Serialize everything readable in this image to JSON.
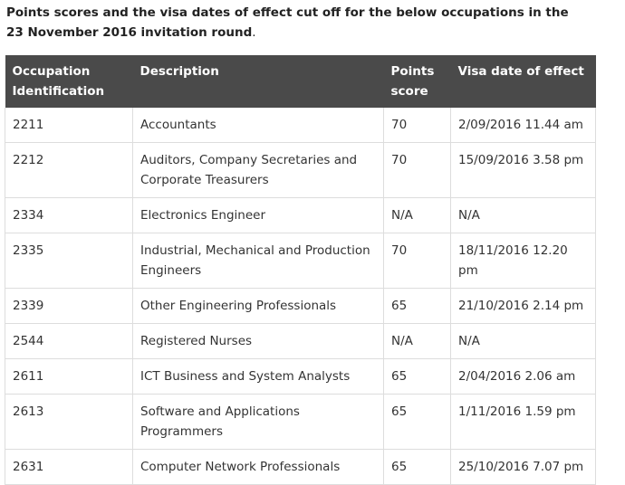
{
  "intro": {
    "text": "Points scores and the visa dates of effect cut off for the below occupations in the 23 November 2016 invitation round",
    "suffix": "."
  },
  "table": {
    "headers": {
      "occupation": "Occupation Identification",
      "description": "Description",
      "points": "Points score",
      "date": "Visa date of effect"
    },
    "rows": [
      {
        "code": "2211",
        "description": "Accountants",
        "points": "70",
        "date": "2/09/2016  11.44 am"
      },
      {
        "code": "2212",
        "description": "Auditors, Company Secretaries and Corporate Treasurers",
        "points": "70",
        "date": "15/09/2016  3.58 pm"
      },
      {
        "code": "2334",
        "description": "Electronics Engineer",
        "points": "N/A",
        "date": "N/A"
      },
      {
        "code": "2335",
        "description": "Industrial, Mechanical and Production Engineers",
        "points": "70",
        "date": "18/11/2016  12.20 pm"
      },
      {
        "code": "2339",
        "description": "Other Engineering Professionals",
        "points": "65",
        "date": "21/10/2016  2.14 pm"
      },
      {
        "code": "2544",
        "description": "Registered Nurses",
        "points": "N/A",
        "date": "N/A"
      },
      {
        "code": "2611",
        "description": "ICT Business and System Analysts",
        "points": "65",
        "date": "2/04/2016  2.06 am"
      },
      {
        "code": "2613",
        "description": "Software and Applications Programmers",
        "points": "65",
        "date": "1/11/2016  1.59 pm"
      },
      {
        "code": "2631",
        "description": "Computer Network Professionals",
        "points": "65",
        "date": "25/10/2016  7.07 pm"
      }
    ]
  }
}
